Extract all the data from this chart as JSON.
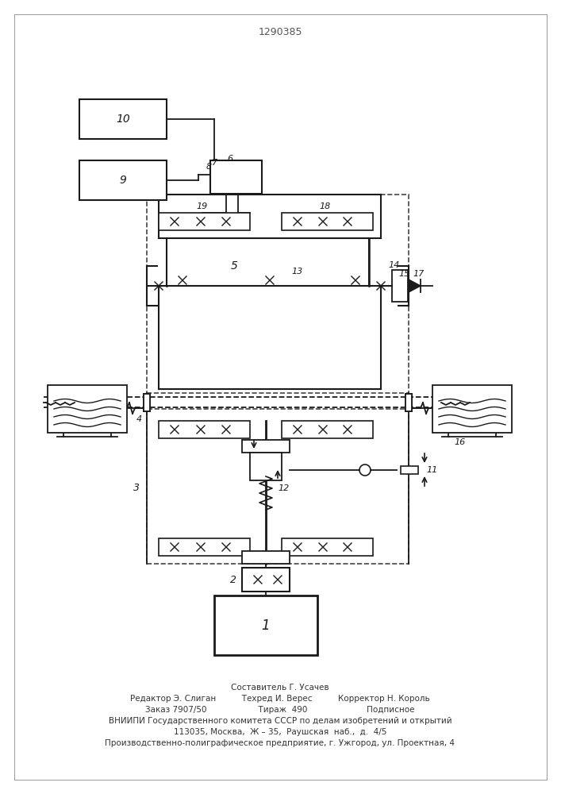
{
  "patent_number": "1290385",
  "bg": "#ffffff",
  "lc": "#1a1a1a",
  "footer": [
    "Составитель Г. Усачев",
    "Редактор Э. Слиган          Техред И. Верес          Корректор Н. Король",
    "Заказ 7907/50                    Тираж  490                       Подписное",
    "ВНИИПИ Государственного комитета СССР по делам изобретений и открытий",
    "113035, Москва,  Ж – 35,  Раушская  наб.,  д.  4/5",
    "Производственно-полиграфическое предприятие, г. Ужгород, ул. Проектная, 4"
  ]
}
